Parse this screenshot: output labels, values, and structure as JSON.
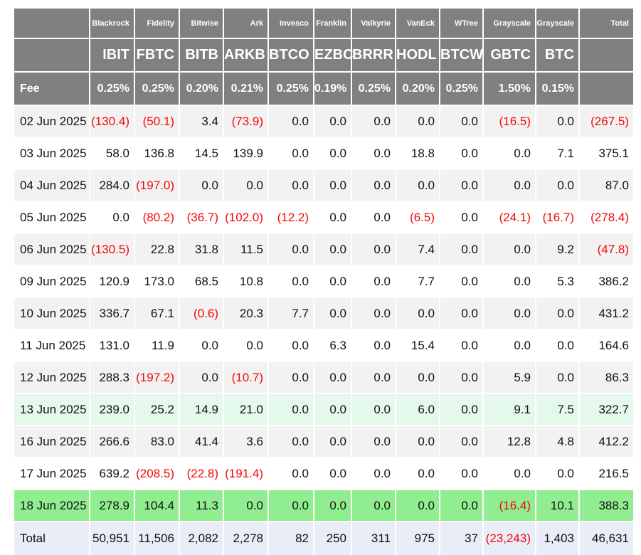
{
  "colors": {
    "header_bg": "#808080",
    "stripe_bg": "#f2f2f3",
    "mint_bg": "#e4f8ec",
    "green_bg": "#90ee90",
    "total_bg": "#e9edf8",
    "negative": "#f40606"
  },
  "table": {
    "header": {
      "fee_label": "Fee",
      "total_label": "Total",
      "columns": [
        {
          "company": "Blackrock",
          "ticker": "IBIT",
          "fee": "0.25%"
        },
        {
          "company": "Fidelity",
          "ticker": "FBTC",
          "fee": "0.25%"
        },
        {
          "company": "Bitwise",
          "ticker": "BITB",
          "fee": "0.20%"
        },
        {
          "company": "Ark",
          "ticker": "ARKB",
          "fee": "0.21%"
        },
        {
          "company": "Invesco",
          "ticker": "BTCO",
          "fee": "0.25%"
        },
        {
          "company": "Franklin",
          "ticker": "EZBC",
          "fee": "0.19%"
        },
        {
          "company": "Valkyrie",
          "ticker": "BRRR",
          "fee": "0.25%"
        },
        {
          "company": "VanEck",
          "ticker": "HODL",
          "fee": "0.20%"
        },
        {
          "company": "WTree",
          "ticker": "BTCW",
          "fee": "0.25%"
        },
        {
          "company": "Grayscale",
          "ticker": "GBTC",
          "fee": "1.50%"
        },
        {
          "company": "Grayscale",
          "ticker": "BTC",
          "fee": "0.15%"
        }
      ]
    },
    "rows": [
      {
        "date": "02 Jun 2025",
        "highlight": "stripe",
        "values": [
          "(130.4)",
          "(50.1)",
          "3.4",
          "(73.9)",
          "0.0",
          "0.0",
          "0.0",
          "0.0",
          "0.0",
          "(16.5)",
          "0.0",
          "(267.5)"
        ]
      },
      {
        "date": "03 Jun 2025",
        "highlight": "plain",
        "values": [
          "58.0",
          "136.8",
          "14.5",
          "139.9",
          "0.0",
          "0.0",
          "0.0",
          "18.8",
          "0.0",
          "0.0",
          "7.1",
          "375.1"
        ]
      },
      {
        "date": "04 Jun 2025",
        "highlight": "stripe",
        "values": [
          "284.0",
          "(197.0)",
          "0.0",
          "0.0",
          "0.0",
          "0.0",
          "0.0",
          "0.0",
          "0.0",
          "0.0",
          "0.0",
          "87.0"
        ]
      },
      {
        "date": "05 Jun 2025",
        "highlight": "plain",
        "values": [
          "0.0",
          "(80.2)",
          "(36.7)",
          "(102.0)",
          "(12.2)",
          "0.0",
          "0.0",
          "(6.5)",
          "0.0",
          "(24.1)",
          "(16.7)",
          "(278.4)"
        ]
      },
      {
        "date": "06 Jun 2025",
        "highlight": "stripe",
        "values": [
          "(130.5)",
          "22.8",
          "31.8",
          "11.5",
          "0.0",
          "0.0",
          "0.0",
          "7.4",
          "0.0",
          "0.0",
          "9.2",
          "(47.8)"
        ]
      },
      {
        "date": "09 Jun 2025",
        "highlight": "plain",
        "values": [
          "120.9",
          "173.0",
          "68.5",
          "10.8",
          "0.0",
          "0.0",
          "0.0",
          "7.7",
          "0.0",
          "0.0",
          "5.3",
          "386.2"
        ]
      },
      {
        "date": "10 Jun 2025",
        "highlight": "stripe",
        "values": [
          "336.7",
          "67.1",
          "(0.6)",
          "20.3",
          "7.7",
          "0.0",
          "0.0",
          "0.0",
          "0.0",
          "0.0",
          "0.0",
          "431.2"
        ]
      },
      {
        "date": "11 Jun 2025",
        "highlight": "plain",
        "values": [
          "131.0",
          "11.9",
          "0.0",
          "0.0",
          "0.0",
          "6.3",
          "0.0",
          "15.4",
          "0.0",
          "0.0",
          "0.0",
          "164.6"
        ]
      },
      {
        "date": "12 Jun 2025",
        "highlight": "stripe",
        "values": [
          "288.3",
          "(197.2)",
          "0.0",
          "(10.7)",
          "0.0",
          "0.0",
          "0.0",
          "0.0",
          "0.0",
          "5.9",
          "0.0",
          "86.3"
        ]
      },
      {
        "date": "13 Jun 2025",
        "highlight": "mint",
        "values": [
          "239.0",
          "25.2",
          "14.9",
          "21.0",
          "0.0",
          "0.0",
          "0.0",
          "6.0",
          "0.0",
          "9.1",
          "7.5",
          "322.7"
        ]
      },
      {
        "date": "16 Jun 2025",
        "highlight": "stripe",
        "values": [
          "266.6",
          "83.0",
          "41.4",
          "3.6",
          "0.0",
          "0.0",
          "0.0",
          "0.0",
          "0.0",
          "12.8",
          "4.8",
          "412.2"
        ]
      },
      {
        "date": "17 Jun 2025",
        "highlight": "plain",
        "values": [
          "639.2",
          "(208.5)",
          "(22.8)",
          "(191.4)",
          "0.0",
          "0.0",
          "0.0",
          "0.0",
          "0.0",
          "0.0",
          "0.0",
          "216.5"
        ]
      },
      {
        "date": "18 Jun 2025",
        "highlight": "green",
        "values": [
          "278.9",
          "104.4",
          "11.3",
          "0.0",
          "0.0",
          "0.0",
          "0.0",
          "0.0",
          "0.0",
          "(16.4)",
          "10.1",
          "388.3"
        ]
      }
    ],
    "total_row": {
      "label": "Total",
      "values": [
        "50,951",
        "11,506",
        "2,082",
        "2,278",
        "82",
        "250",
        "311",
        "975",
        "37",
        "(23,243)",
        "1,403",
        "46,631"
      ]
    }
  },
  "chart_data": {
    "type": "table",
    "issuers": [
      "Blackrock",
      "Fidelity",
      "Bitwise",
      "Ark",
      "Invesco",
      "Franklin",
      "Valkyrie",
      "VanEck",
      "WTree",
      "Grayscale",
      "Grayscale"
    ],
    "columns": [
      "IBIT",
      "FBTC",
      "BITB",
      "ARKB",
      "BTCO",
      "EZBC",
      "BRRR",
      "HODL",
      "BTCW",
      "GBTC",
      "BTC",
      "Total"
    ],
    "fees_pct": [
      0.25,
      0.25,
      0.2,
      0.21,
      0.25,
      0.19,
      0.25,
      0.2,
      0.25,
      1.5,
      0.15
    ],
    "rows": [
      {
        "date": "02 Jun 2025",
        "values": [
          -130.4,
          -50.1,
          3.4,
          -73.9,
          0.0,
          0.0,
          0.0,
          0.0,
          0.0,
          -16.5,
          0.0,
          -267.5
        ]
      },
      {
        "date": "03 Jun 2025",
        "values": [
          58.0,
          136.8,
          14.5,
          139.9,
          0.0,
          0.0,
          0.0,
          18.8,
          0.0,
          0.0,
          7.1,
          375.1
        ]
      },
      {
        "date": "04 Jun 2025",
        "values": [
          284.0,
          -197.0,
          0.0,
          0.0,
          0.0,
          0.0,
          0.0,
          0.0,
          0.0,
          0.0,
          0.0,
          87.0
        ]
      },
      {
        "date": "05 Jun 2025",
        "values": [
          0.0,
          -80.2,
          -36.7,
          -102.0,
          -12.2,
          0.0,
          0.0,
          -6.5,
          0.0,
          -24.1,
          -16.7,
          -278.4
        ]
      },
      {
        "date": "06 Jun 2025",
        "values": [
          -130.5,
          22.8,
          31.8,
          11.5,
          0.0,
          0.0,
          0.0,
          7.4,
          0.0,
          0.0,
          9.2,
          -47.8
        ]
      },
      {
        "date": "09 Jun 2025",
        "values": [
          120.9,
          173.0,
          68.5,
          10.8,
          0.0,
          0.0,
          0.0,
          7.7,
          0.0,
          0.0,
          5.3,
          386.2
        ]
      },
      {
        "date": "10 Jun 2025",
        "values": [
          336.7,
          67.1,
          -0.6,
          20.3,
          7.7,
          0.0,
          0.0,
          0.0,
          0.0,
          0.0,
          0.0,
          431.2
        ]
      },
      {
        "date": "11 Jun 2025",
        "values": [
          131.0,
          11.9,
          0.0,
          0.0,
          0.0,
          6.3,
          0.0,
          15.4,
          0.0,
          0.0,
          0.0,
          164.6
        ]
      },
      {
        "date": "12 Jun 2025",
        "values": [
          288.3,
          -197.2,
          0.0,
          -10.7,
          0.0,
          0.0,
          0.0,
          0.0,
          0.0,
          5.9,
          0.0,
          86.3
        ]
      },
      {
        "date": "13 Jun 2025",
        "values": [
          239.0,
          25.2,
          14.9,
          21.0,
          0.0,
          0.0,
          0.0,
          6.0,
          0.0,
          9.1,
          7.5,
          322.7
        ]
      },
      {
        "date": "16 Jun 2025",
        "values": [
          266.6,
          83.0,
          41.4,
          3.6,
          0.0,
          0.0,
          0.0,
          0.0,
          0.0,
          12.8,
          4.8,
          412.2
        ]
      },
      {
        "date": "17 Jun 2025",
        "values": [
          639.2,
          -208.5,
          -22.8,
          -191.4,
          0.0,
          0.0,
          0.0,
          0.0,
          0.0,
          0.0,
          0.0,
          216.5
        ]
      },
      {
        "date": "18 Jun 2025",
        "values": [
          278.9,
          104.4,
          11.3,
          0.0,
          0.0,
          0.0,
          0.0,
          0.0,
          0.0,
          -16.4,
          10.1,
          388.3
        ]
      }
    ],
    "total": [
      50951,
      11506,
      2082,
      2278,
      82,
      250,
      311,
      975,
      37,
      -23243,
      1403,
      46631
    ]
  }
}
